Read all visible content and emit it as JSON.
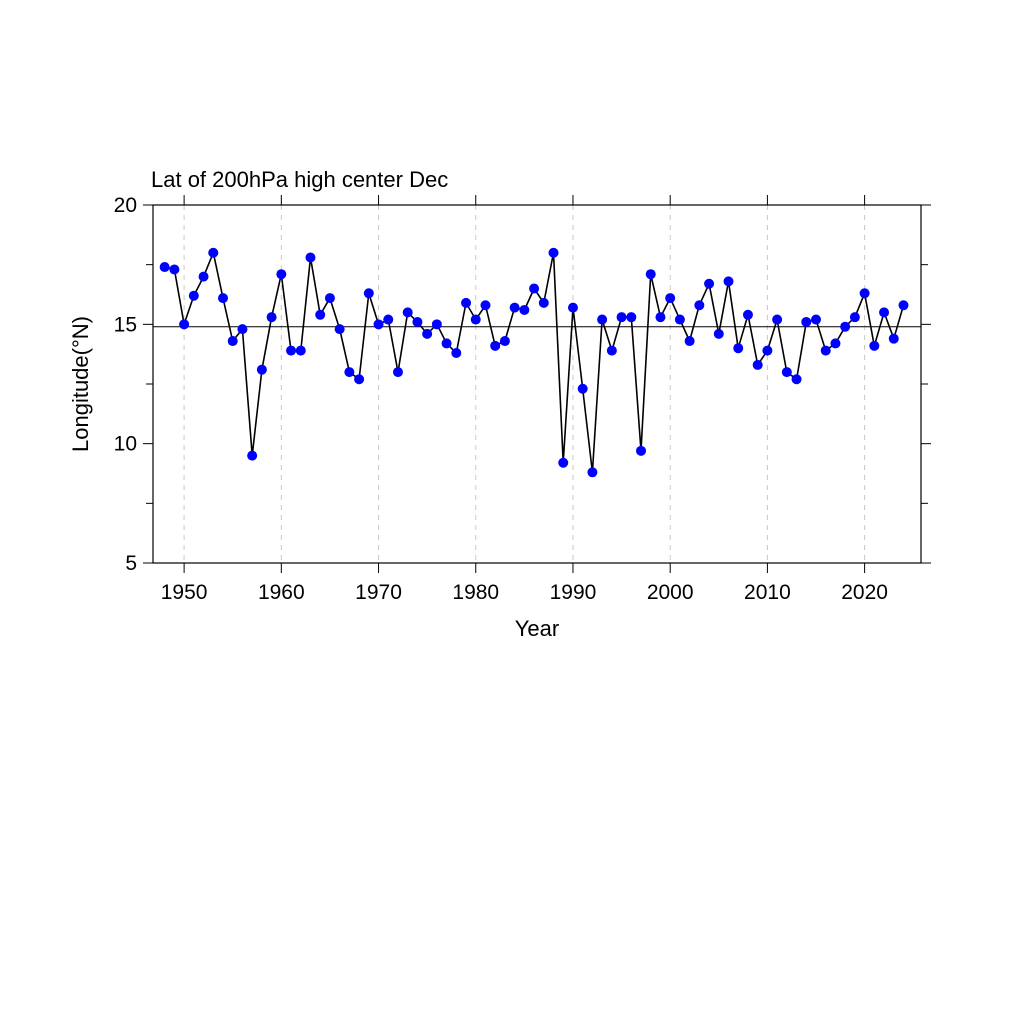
{
  "chart_data": {
    "type": "line",
    "title": "Lat of 200hPa high center Dec",
    "xlabel": "Year",
    "ylabel": "Longitude(°N)",
    "xlim": [
      1946.8,
      2025.8
    ],
    "ylim": [
      5,
      20
    ],
    "xticks": [
      1950,
      1960,
      1970,
      1980,
      1990,
      2000,
      2010,
      2020
    ],
    "yticks": [
      5,
      10,
      15,
      20
    ],
    "ytick_minor": [
      7.5,
      12.5,
      17.5
    ],
    "grid": "vertical dashed at x ticks",
    "reference_line": 14.9,
    "colors": {
      "marker": "#0000ff",
      "line": "#000000",
      "grid": "#c8c8c8"
    },
    "series": [
      {
        "x": [
          1948,
          1949,
          1950,
          1951,
          1952,
          1953,
          1954,
          1955,
          1956,
          1957,
          1958,
          1959,
          1960,
          1961,
          1962,
          1963,
          1964,
          1965,
          1966,
          1967,
          1968,
          1969,
          1970,
          1971,
          1972,
          1973,
          1974,
          1975,
          1976,
          1977,
          1978,
          1979,
          1980,
          1981,
          1982,
          1983,
          1984,
          1985,
          1986,
          1987,
          1988,
          1989,
          1990,
          1991,
          1992,
          1993,
          1994,
          1995,
          1996,
          1997,
          1998,
          1999,
          2000,
          2001,
          2002,
          2003,
          2004,
          2005,
          2006,
          2007,
          2008,
          2009,
          2010,
          2011,
          2012,
          2013,
          2014,
          2015,
          2016,
          2017,
          2018,
          2019,
          2020,
          2021,
          2022,
          2023,
          2024
        ],
        "values": [
          17.4,
          17.3,
          15.0,
          16.2,
          17.0,
          18.0,
          16.1,
          14.3,
          14.8,
          9.5,
          13.1,
          15.3,
          17.1,
          13.9,
          13.9,
          17.8,
          15.4,
          16.1,
          14.8,
          13.0,
          12.7,
          16.3,
          15.0,
          15.2,
          13.0,
          15.5,
          15.1,
          14.6,
          15.0,
          14.2,
          13.8,
          15.9,
          15.2,
          15.8,
          14.1,
          14.3,
          15.7,
          15.6,
          16.5,
          15.9,
          18.0,
          9.2,
          15.7,
          12.3,
          8.8,
          15.2,
          13.9,
          15.3,
          15.3,
          9.7,
          17.1,
          15.3,
          16.1,
          15.2,
          14.3,
          15.8,
          16.7,
          14.6,
          16.8,
          14.0,
          15.4,
          13.3,
          13.9,
          15.2,
          13.0,
          12.7,
          15.1,
          15.2,
          13.9,
          14.2,
          14.9,
          15.3,
          16.3,
          14.1,
          15.5,
          14.4,
          15.8
        ]
      }
    ]
  }
}
